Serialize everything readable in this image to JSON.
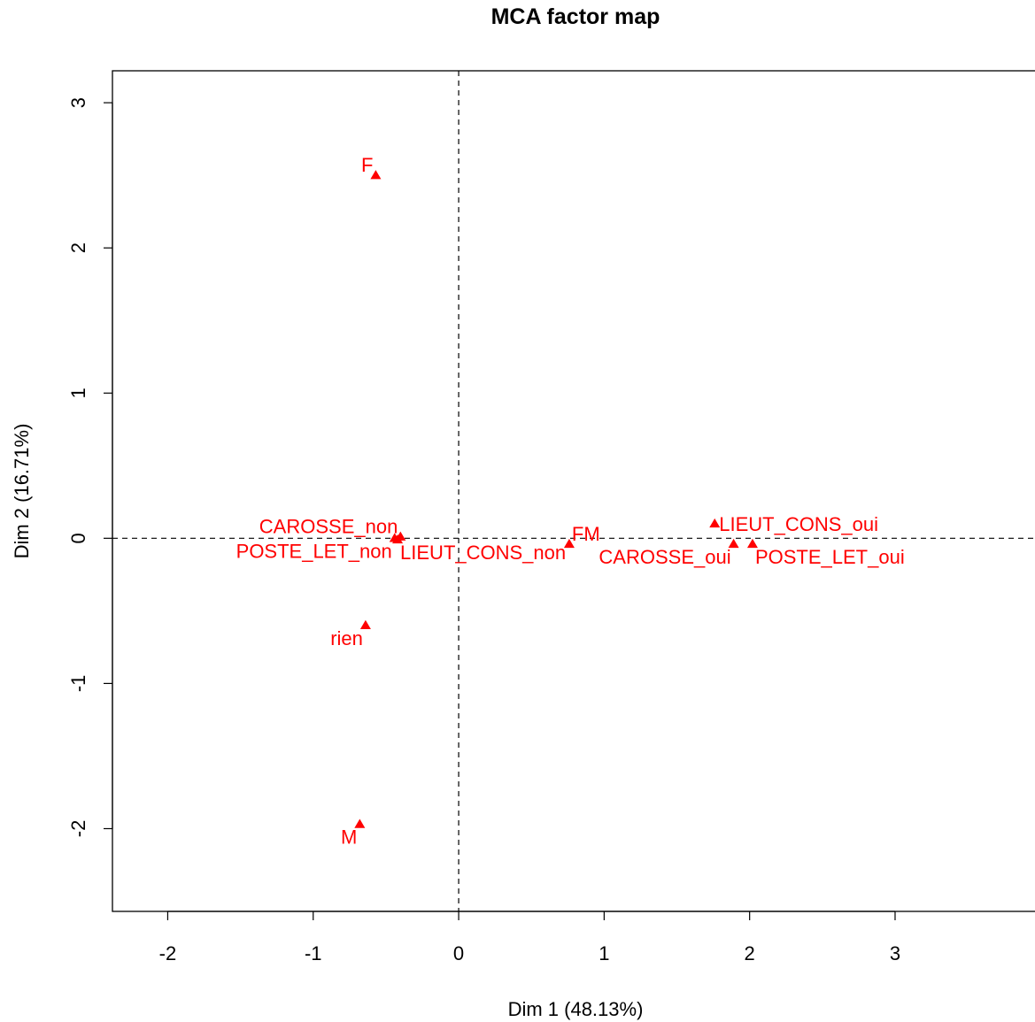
{
  "chart_data": {
    "type": "scatter",
    "title": "MCA factor map",
    "xlabel": "Dim 1 (48.13%)",
    "ylabel": "Dim 2 (16.71%)",
    "xlim": [
      -2.38,
      3.98
    ],
    "ylim": [
      -2.57,
      3.22
    ],
    "x_ticks": [
      -2,
      -1,
      0,
      1,
      2,
      3
    ],
    "y_ticks": [
      -2,
      -1,
      0,
      1,
      2,
      3
    ],
    "x_tick_labels": [
      "-2",
      "-1",
      "0",
      "1",
      "2",
      "3"
    ],
    "y_tick_labels": [
      "-2",
      "-1",
      "0",
      "1",
      "2",
      "3"
    ],
    "reference_lines": {
      "x": 0,
      "y": 0,
      "style": "dashed"
    },
    "marker": "triangle",
    "color": "#ff0000",
    "grid": false,
    "legend": "none",
    "points": [
      {
        "label": "F",
        "x": -0.57,
        "y": 2.5,
        "label_side": "upper-left"
      },
      {
        "label": "M",
        "x": -0.68,
        "y": -1.97,
        "label_side": "lower-left"
      },
      {
        "label": "rien",
        "x": -0.64,
        "y": -0.6,
        "label_side": "lower-left"
      },
      {
        "label": "CAROSSE_non",
        "x": -0.4,
        "y": 0.01,
        "label_side": "upper-left"
      },
      {
        "label": "POSTE_LET_non",
        "x": -0.44,
        "y": 0.0,
        "label_side": "lower-left"
      },
      {
        "label": "LIEUT_CONS_non",
        "x": -0.42,
        "y": -0.01,
        "label_side": "lower-right"
      },
      {
        "label": "FM",
        "x": 0.76,
        "y": -0.04,
        "label_side": "upper-right"
      },
      {
        "label": "LIEUT_CONS_oui",
        "x": 1.76,
        "y": 0.1,
        "label_side": "right"
      },
      {
        "label": "CAROSSE_oui",
        "x": 1.89,
        "y": -0.04,
        "label_side": "lower-left"
      },
      {
        "label": "POSTE_LET_oui",
        "x": 2.02,
        "y": -0.04,
        "label_side": "lower-right"
      }
    ]
  }
}
